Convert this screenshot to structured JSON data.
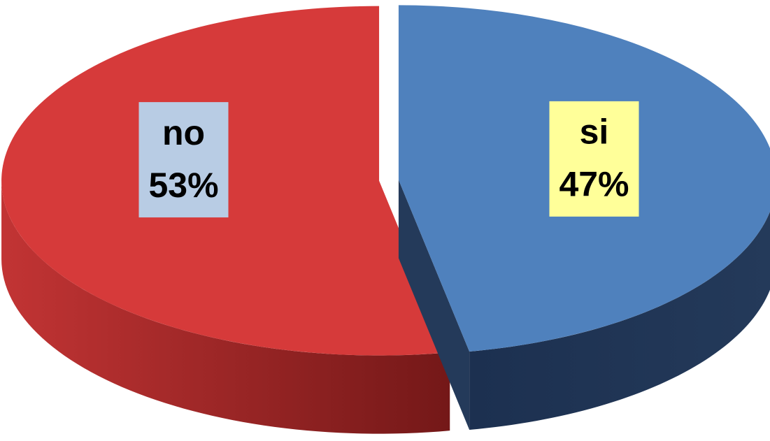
{
  "chart_data": {
    "type": "pie",
    "categories": [
      "si",
      "no"
    ],
    "values": [
      47,
      53
    ],
    "value_labels": [
      "47%",
      "53%"
    ],
    "colors": [
      "#4f81bd",
      "#d63a3a"
    ],
    "label_backgrounds": [
      "#ffff99",
      "#b8cce4"
    ]
  }
}
